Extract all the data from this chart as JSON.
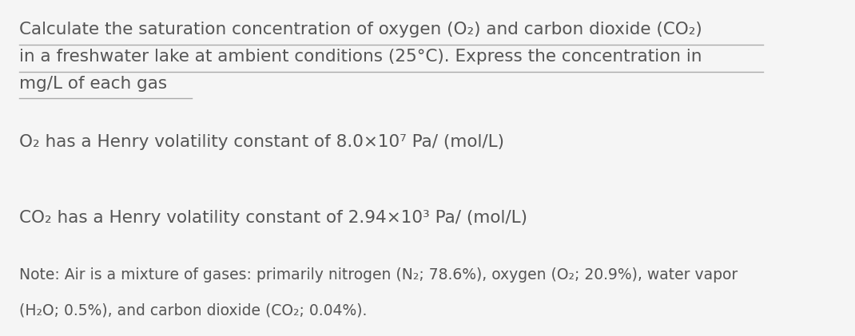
{
  "background_color": "#f5f5f5",
  "text_color": "#555555",
  "title_lines": [
    "Calculate the saturation concentration of oxygen (O₂) and carbon dioxide (CO₂)",
    "in a freshwater lake at ambient conditions (25°C). Express the concentration in",
    "mg/L of each gas"
  ],
  "line1": "O₂ has a Henry volatility constant of 8.0×10⁷ Pa/ (mol/L)",
  "line2": "CO₂ has a Henry volatility constant of 2.94×10³ Pa/ (mol/L)",
  "note_line1": "Note: Air is a mixture of gases: primarily nitrogen (N₂; 78.6%), oxygen (O₂; 20.9%), water vapor",
  "note_line2": "(H₂O; 0.5%), and carbon dioxide (CO₂; 0.04%).",
  "title_fontsize": 15.5,
  "body_fontsize": 15.5,
  "note_fontsize": 13.5,
  "underline_color": "#aaaaaa",
  "figsize": [
    10.7,
    4.21
  ],
  "dpi": 100
}
